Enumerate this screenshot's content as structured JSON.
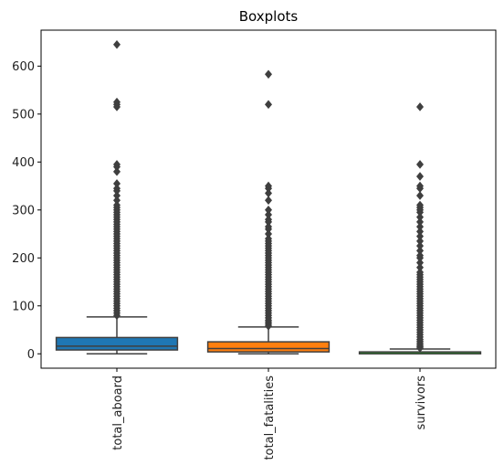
{
  "chart_data": {
    "type": "box",
    "title": "Boxplots",
    "xlabel": "",
    "ylabel": "",
    "ylim": [
      -30,
      675
    ],
    "yticks": [
      0,
      100,
      200,
      300,
      400,
      500,
      600
    ],
    "categories": [
      "total_aboard",
      "total_fatalities",
      "survivors"
    ],
    "boxes": [
      {
        "name": "total_aboard",
        "color": "#1f77b4",
        "min": 0,
        "q1": 8,
        "median": 16,
        "q3": 34,
        "max": 77,
        "outliers": [
          80,
          85,
          90,
          95,
          100,
          105,
          110,
          115,
          120,
          125,
          130,
          135,
          140,
          145,
          150,
          155,
          160,
          165,
          170,
          175,
          180,
          185,
          190,
          195,
          200,
          205,
          210,
          215,
          220,
          225,
          230,
          235,
          240,
          245,
          250,
          255,
          260,
          265,
          270,
          275,
          280,
          285,
          290,
          295,
          300,
          305,
          310,
          320,
          330,
          340,
          345,
          355,
          380,
          390,
          395,
          515,
          520,
          525,
          645
        ]
      },
      {
        "name": "total_fatalities",
        "color": "#ff7f0e",
        "min": 0,
        "q1": 4,
        "median": 11,
        "q3": 25,
        "max": 56,
        "outliers": [
          58,
          62,
          66,
          70,
          75,
          80,
          85,
          90,
          95,
          100,
          105,
          110,
          115,
          120,
          125,
          130,
          135,
          140,
          145,
          150,
          155,
          160,
          165,
          170,
          175,
          180,
          185,
          190,
          195,
          200,
          205,
          210,
          215,
          220,
          225,
          230,
          235,
          240,
          250,
          260,
          265,
          275,
          280,
          290,
          300,
          320,
          335,
          345,
          350,
          520,
          583
        ]
      },
      {
        "name": "survivors",
        "color": "#2ca02c",
        "min": 0,
        "q1": 0,
        "median": 0,
        "q3": 4,
        "max": 10,
        "outliers": [
          12,
          15,
          18,
          22,
          26,
          30,
          35,
          40,
          45,
          50,
          55,
          60,
          65,
          70,
          75,
          80,
          85,
          90,
          95,
          100,
          105,
          110,
          115,
          120,
          125,
          130,
          135,
          140,
          145,
          150,
          155,
          160,
          165,
          170,
          180,
          190,
          200,
          205,
          215,
          225,
          235,
          245,
          255,
          265,
          275,
          285,
          295,
          300,
          305,
          310,
          330,
          345,
          350,
          370,
          395,
          515
        ]
      }
    ]
  }
}
